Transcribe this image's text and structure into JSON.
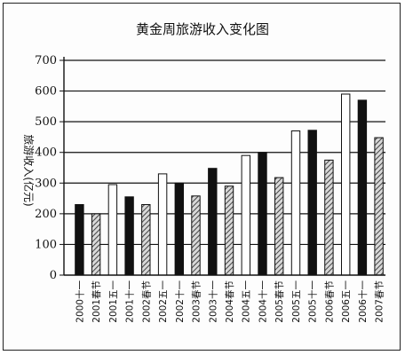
{
  "chart_data": {
    "type": "bar",
    "title": "黄金周旅游收入变化图",
    "ylabel": "旅游收入(亿元)",
    "xlabel": "",
    "ylim": [
      0,
      700
    ],
    "yticks": [
      0,
      100,
      200,
      300,
      400,
      500,
      600,
      700
    ],
    "grid": true,
    "categories": [
      "2000十一",
      "2001春节",
      "2001五一",
      "2001十一",
      "2002春节",
      "2002五一",
      "2002十一",
      "2003春节",
      "2003十一",
      "2004春节",
      "2004五一",
      "2004十一",
      "2005春节",
      "2005五一",
      "2005十一",
      "2006春节",
      "2006五一",
      "2006十一",
      "2007春节"
    ],
    "values": [
      230,
      200,
      295,
      255,
      230,
      330,
      300,
      258,
      348,
      290,
      390,
      400,
      318,
      470,
      472,
      375,
      590,
      570,
      448
    ],
    "bar_styles": [
      "black",
      "hatched",
      "white",
      "black",
      "hatched",
      "white",
      "black",
      "hatched",
      "black",
      "hatched",
      "white",
      "black",
      "hatched",
      "white",
      "black",
      "hatched",
      "white",
      "black",
      "hatched"
    ],
    "colors": {
      "black": "#111111",
      "white": "#ffffff",
      "hatched": "#8a8a8a",
      "outline": "#111111"
    }
  }
}
